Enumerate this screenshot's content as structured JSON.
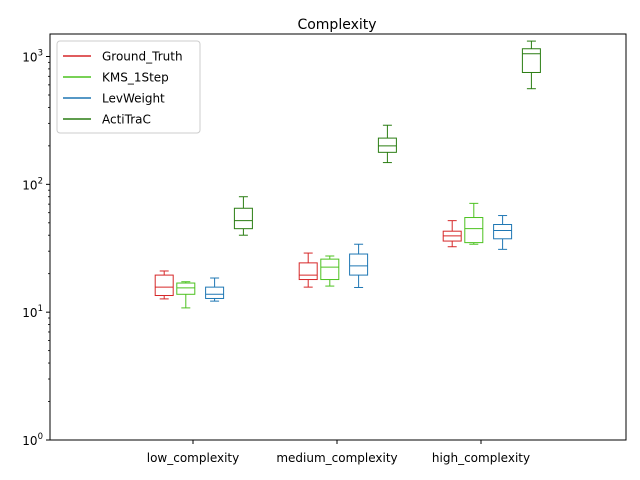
{
  "chart_data": {
    "type": "box",
    "title": "Complexity",
    "xlabel": "",
    "ylabel": "",
    "yscale": "log",
    "ylim": [
      1,
      1500
    ],
    "y_ticks": [
      {
        "value": 1,
        "base": "10",
        "exp": "0"
      },
      {
        "value": 10,
        "base": "10",
        "exp": "1"
      },
      {
        "value": 100,
        "base": "10",
        "exp": "2"
      },
      {
        "value": 1000,
        "base": "10",
        "exp": "3"
      }
    ],
    "categories": [
      "low_complexity",
      "medium_complexity",
      "high_complexity"
    ],
    "legend_position": "upper-left",
    "grid": false,
    "series": [
      {
        "name": "Ground_Truth",
        "color": "#d62728",
        "boxes": [
          {
            "min": 12.7,
            "q1": 13.5,
            "median": 15.7,
            "q3": 19.5,
            "max": 21.0
          },
          {
            "min": 15.7,
            "q1": 18.0,
            "median": 19.5,
            "q3": 24.3,
            "max": 29.0
          },
          {
            "min": 32.5,
            "q1": 36.0,
            "median": 39.5,
            "q3": 43.0,
            "max": 52.0
          }
        ]
      },
      {
        "name": "KMS_1Step",
        "color": "#4cc21f",
        "boxes": [
          {
            "min": 10.8,
            "q1": 13.8,
            "median": 15.5,
            "q3": 16.9,
            "max": 17.3
          },
          {
            "min": 16.0,
            "q1": 18.0,
            "median": 22.5,
            "q3": 26.0,
            "max": 27.5
          },
          {
            "min": 34.0,
            "q1": 35.0,
            "median": 45.0,
            "q3": 55.0,
            "max": 71.0
          }
        ]
      },
      {
        "name": "LevWeight",
        "color": "#1f77b4",
        "boxes": [
          {
            "min": 12.2,
            "q1": 12.8,
            "median": 13.8,
            "q3": 15.7,
            "max": 18.5
          },
          {
            "min": 15.6,
            "q1": 19.5,
            "median": 23.0,
            "q3": 28.5,
            "max": 34.0
          },
          {
            "min": 31.0,
            "q1": 37.5,
            "median": 43.5,
            "q3": 48.5,
            "max": 57.0
          }
        ]
      },
      {
        "name": "ActiTraC",
        "color": "#2a7d12",
        "boxes": [
          {
            "min": 40.0,
            "q1": 45.0,
            "median": 52.0,
            "q3": 65.0,
            "max": 80.0
          },
          {
            "min": 148.0,
            "q1": 178.0,
            "median": 200.0,
            "q3": 230.0,
            "max": 290.0
          },
          {
            "min": 560.0,
            "q1": 750.0,
            "median": 1050.0,
            "q3": 1150.0,
            "max": 1320.0
          }
        ]
      }
    ]
  }
}
